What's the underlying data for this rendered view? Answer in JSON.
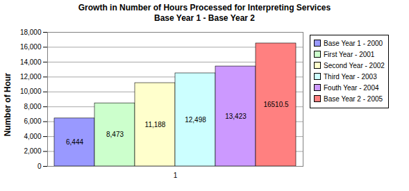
{
  "chart_data": {
    "type": "bar",
    "title": "Growth in Number of Hours Processed for Interpreting Services",
    "subtitle": "Base Year 1 - Base Year 2",
    "ylabel": "Number of Hour",
    "categories": [
      "1"
    ],
    "series": [
      {
        "name": "Base Year 1 - 2000",
        "color": "#9999ff",
        "values": [
          6444
        ],
        "value_labels": [
          "6,444"
        ]
      },
      {
        "name": "First Year - 2001",
        "color": "#ccffcc",
        "values": [
          8473
        ],
        "value_labels": [
          "8,473"
        ]
      },
      {
        "name": "Second Year - 2002",
        "color": "#ffffcc",
        "values": [
          11188
        ],
        "value_labels": [
          "11,188"
        ]
      },
      {
        "name": "Third Year - 2003",
        "color": "#ccffff",
        "values": [
          12498
        ],
        "value_labels": [
          "12,498"
        ]
      },
      {
        "name": "Fouth Year - 2004",
        "color": "#cc99ff",
        "values": [
          13423
        ],
        "value_labels": [
          "13,423"
        ]
      },
      {
        "name": "Base Year 2 - 2005",
        "color": "#ff8080",
        "values": [
          16510.5
        ],
        "value_labels": [
          "16510.5"
        ]
      }
    ],
    "ylim": [
      0,
      18000
    ],
    "yticks": [
      0,
      {
        "value": 2000,
        "label": "2,000"
      },
      {
        "value": 4000,
        "label": "4,000"
      },
      {
        "value": 6000,
        "label": "6,000"
      },
      {
        "value": 8000,
        "label": "8,000"
      },
      {
        "value": 10000,
        "label": "10,000"
      },
      {
        "value": 12000,
        "label": "12,000"
      },
      {
        "value": 14000,
        "label": "14,000"
      },
      {
        "value": 16000,
        "label": "16,000"
      },
      {
        "value": 18000,
        "label": "18,000"
      }
    ],
    "grid": true,
    "legend": "right",
    "data_labels": true
  }
}
